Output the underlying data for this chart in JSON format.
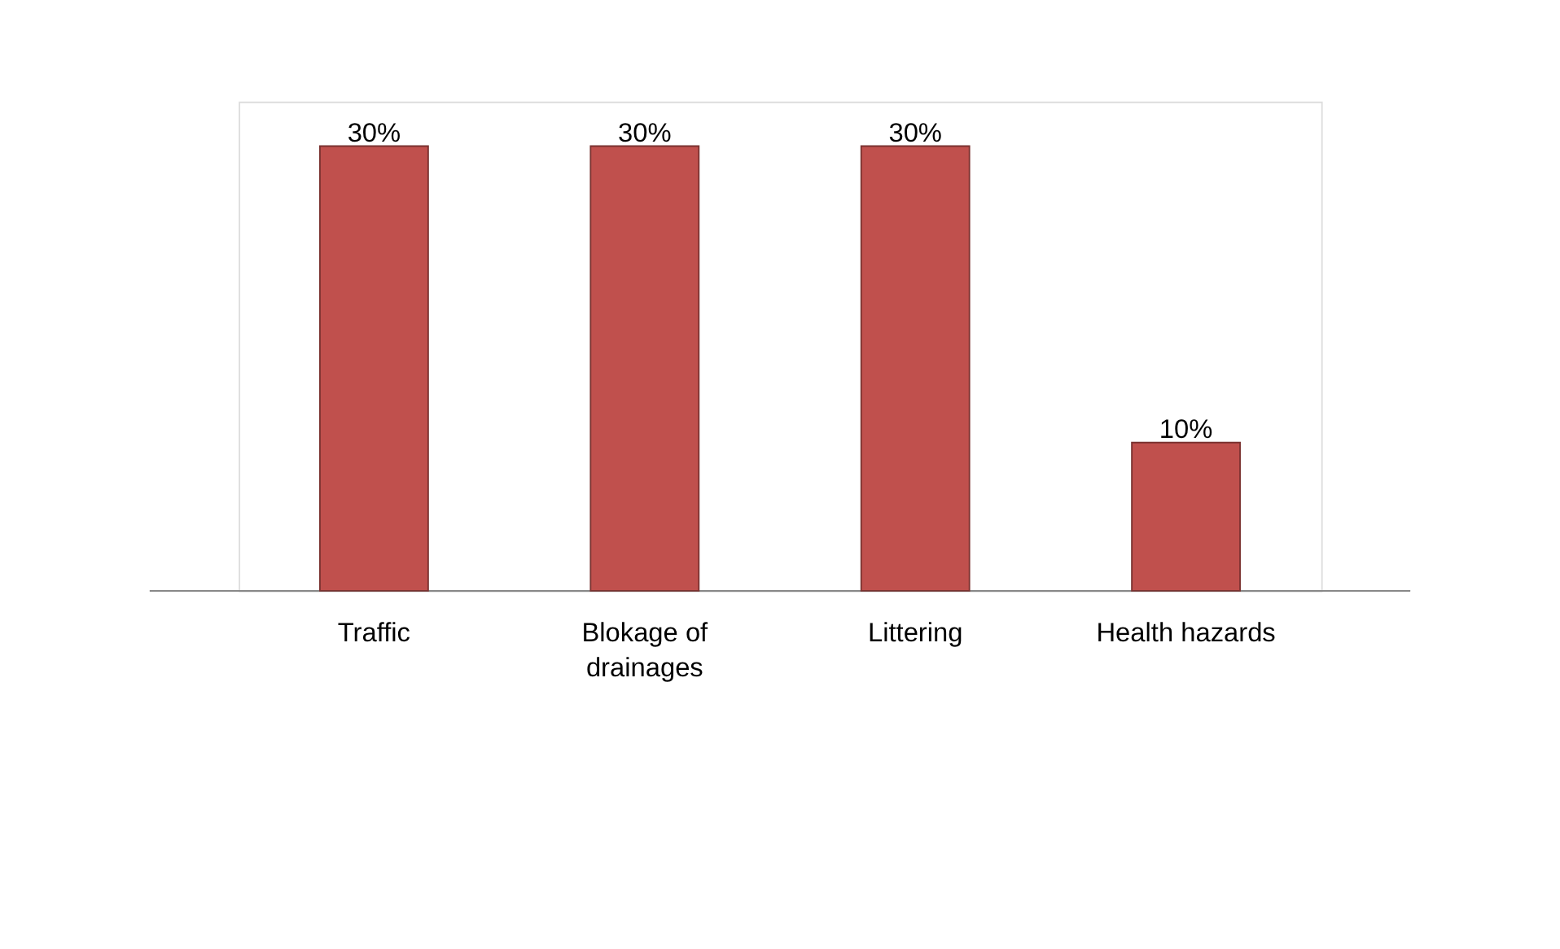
{
  "chart_data": {
    "type": "bar",
    "categories": [
      "Traffic",
      "Blokage of drainages",
      "Littering",
      "Health hazards"
    ],
    "values": [
      30,
      30,
      30,
      10
    ],
    "value_labels": [
      "30%",
      "30%",
      "30%",
      "10%"
    ],
    "color": "#c0504d"
  }
}
